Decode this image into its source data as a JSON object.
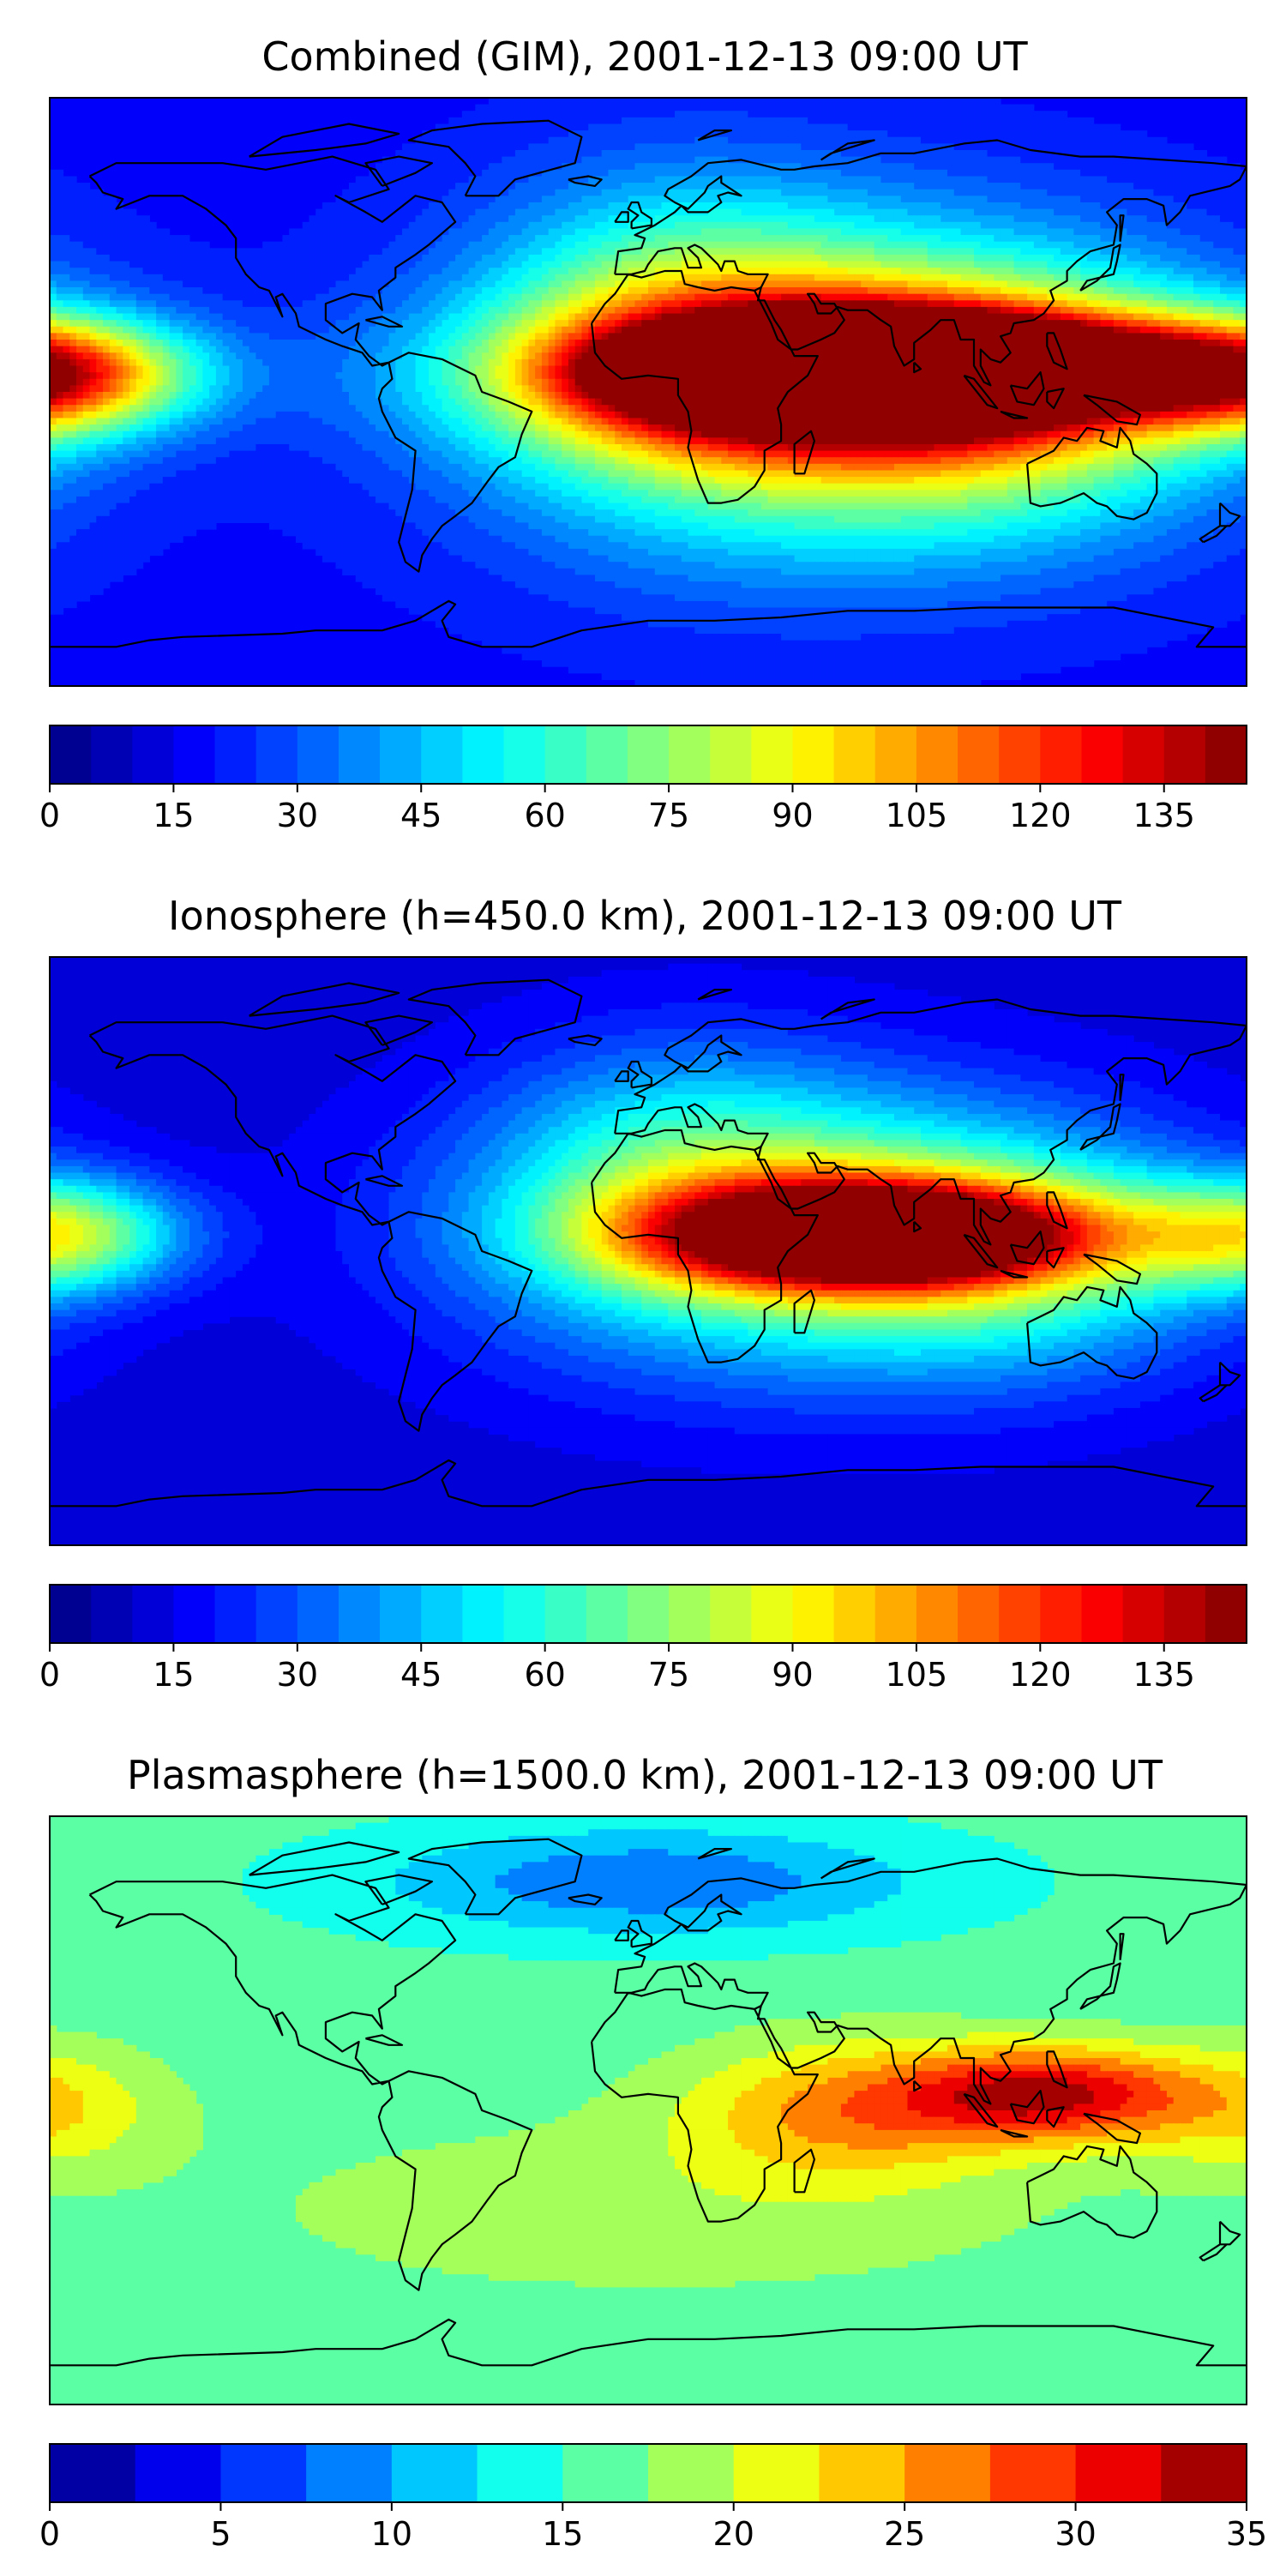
{
  "panels": [
    {
      "title": "Combined (GIM), 2001-12-13 09:00 UT",
      "colorbar": {
        "min": 0,
        "max": 145,
        "step": 5,
        "ticks": [
          "0",
          "15",
          "30",
          "45",
          "60",
          "75",
          "90",
          "105",
          "120",
          "135"
        ]
      },
      "hotspots": [
        {
          "lon": 55,
          "lat": 6,
          "value": 110,
          "sx": 40,
          "sy": 9
        },
        {
          "lon": 90,
          "lat": 8,
          "value": 105,
          "sx": 45,
          "sy": 9
        },
        {
          "lon": 60,
          "lat": 5,
          "value": 85,
          "sx": 70,
          "sy": 16
        },
        {
          "lon": 35,
          "lat": 0,
          "value": 60,
          "sx": 60,
          "sy": 35
        },
        {
          "lon": 110,
          "lat": 0,
          "value": 55,
          "sx": 50,
          "sy": 30
        },
        {
          "lon": -170,
          "lat": 5,
          "value": 45,
          "sx": 30,
          "sy": 12
        },
        {
          "lon": 175,
          "lat": 5,
          "value": 40,
          "sx": 25,
          "sy": 12
        },
        {
          "lon": 10,
          "lat": 25,
          "value": 30,
          "sx": 40,
          "sy": 30
        }
      ],
      "background": 18
    },
    {
      "title": "Ionosphere  (h=450.0 km), 2001-12-13 09:00 UT",
      "colorbar": {
        "min": 0,
        "max": 145,
        "step": 5,
        "ticks": [
          "0",
          "15",
          "30",
          "45",
          "60",
          "75",
          "90",
          "105",
          "120",
          "135"
        ]
      },
      "hotspots": [
        {
          "lon": 50,
          "lat": 5,
          "value": 75,
          "sx": 45,
          "sy": 12
        },
        {
          "lon": 80,
          "lat": 5,
          "value": 72,
          "sx": 40,
          "sy": 10
        },
        {
          "lon": 40,
          "lat": 5,
          "value": 55,
          "sx": 65,
          "sy": 30
        },
        {
          "lon": 110,
          "lat": 0,
          "value": 40,
          "sx": 45,
          "sy": 25
        },
        {
          "lon": -170,
          "lat": 5,
          "value": 35,
          "sx": 25,
          "sy": 12
        },
        {
          "lon": 175,
          "lat": 5,
          "value": 30,
          "sx": 25,
          "sy": 12
        },
        {
          "lon": 10,
          "lat": 30,
          "value": 25,
          "sx": 40,
          "sy": 25
        }
      ],
      "background": 12
    },
    {
      "title": "Plasmasphere (h=1500.0 km), 2001-12-13 09:00 UT",
      "colorbar": {
        "min": 0,
        "max": 35,
        "step": 2.5,
        "ticks": [
          "0",
          "5",
          "10",
          "15",
          "20",
          "25",
          "30",
          "35"
        ]
      },
      "hotspots": [
        {
          "lon": 120,
          "lat": 5,
          "value": 16,
          "sx": 30,
          "sy": 10
        },
        {
          "lon": 60,
          "lat": 0,
          "value": 9,
          "sx": 35,
          "sy": 15
        },
        {
          "lon": -180,
          "lat": 0,
          "value": 6,
          "sx": 25,
          "sy": 14
        },
        {
          "lon": 0,
          "lat": -30,
          "value": 3,
          "sx": 90,
          "sy": 20
        },
        {
          "lon": 0,
          "lat": 70,
          "value": -8,
          "sx": 60,
          "sy": 12
        }
      ],
      "background": 16
    }
  ],
  "colormap": "jet",
  "maps": {
    "panel1": {
      "name": "combined-map"
    },
    "panel2": {
      "name": "ionosphere-map"
    },
    "panel3": {
      "name": "plasmasphere-map"
    }
  }
}
